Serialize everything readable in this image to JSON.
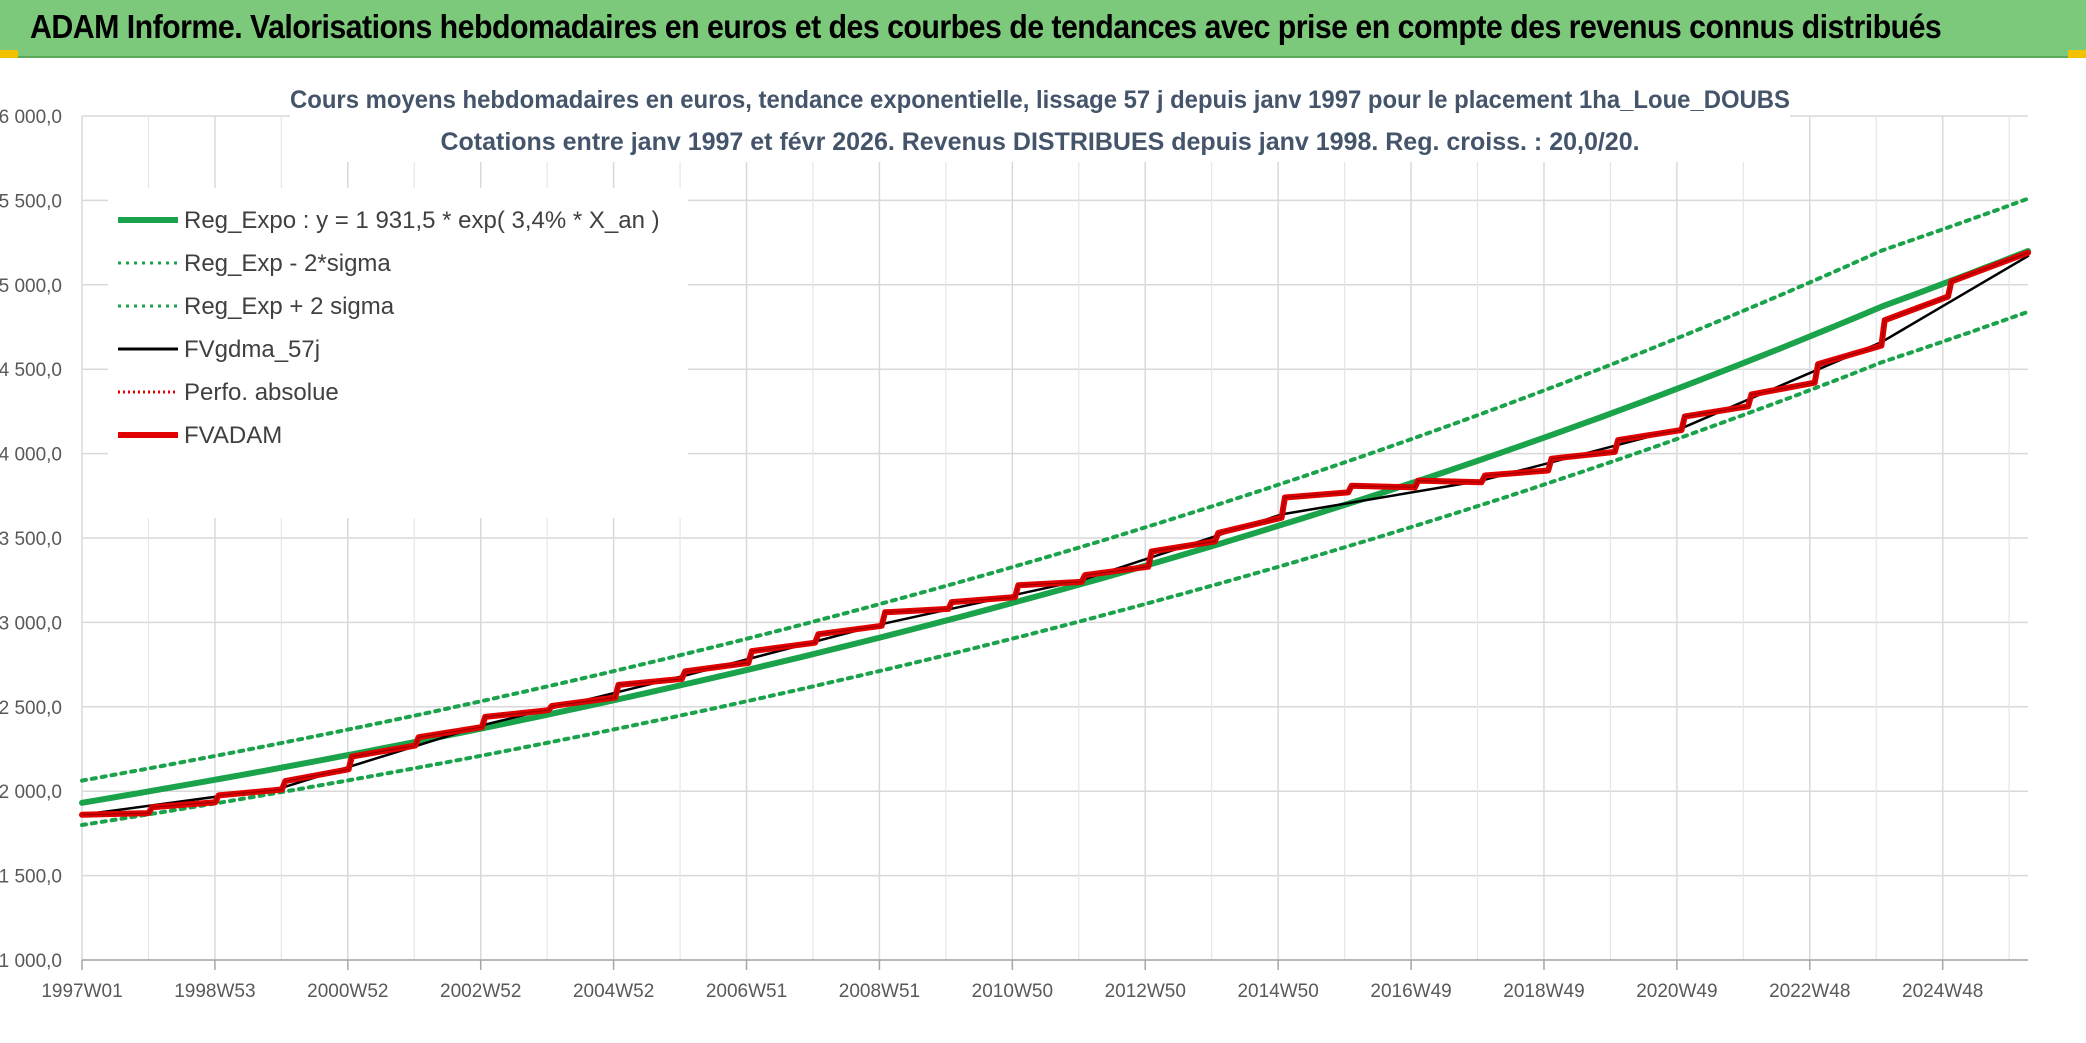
{
  "banner": {
    "title": "ADAM Informe. Valorisations hebdomadaires en euros et des courbes de tendances avec prise en compte des revenus connus distribués"
  },
  "colors": {
    "banner_bg": "#7dc97b",
    "trend": "#1aa34a",
    "band": "#1aa34a",
    "fvgdma": "#000000",
    "perfo": "#e00000",
    "fvadam": "#e00000"
  },
  "chart_data": {
    "type": "line",
    "title": "Cours moyens hebdomadaires en euros, tendance exponentielle, lissage 57 j depuis janv 1997 pour le placement 1ha_Loue_DOUBS",
    "subtitle": "Cotations entre janv 1997 et févr 2026. Revenus DISTRIBUES depuis janv 1998. Reg. croiss. : 20,0/20.",
    "xlabel": "",
    "ylabel": "",
    "ylim": [
      1000,
      6000
    ],
    "yticks": [
      "1 000,0",
      "1 500,0",
      "2 000,0",
      "2 500,0",
      "3 000,0",
      "3 500,0",
      "4 000,0",
      "4 500,0",
      "5 000,0",
      "5 500,0",
      "6 000,0"
    ],
    "x_tick_labels": [
      "1997W01",
      "1998W53",
      "2000W52",
      "2002W52",
      "2004W52",
      "2006W51",
      "2008W51",
      "2010W50",
      "2012W50",
      "2014W50",
      "2016W49",
      "2018W49",
      "2020W49",
      "2022W48",
      "2024W48"
    ],
    "x_range_years": [
      1997.0,
      2026.2
    ],
    "grid": true,
    "legend_position": "top-left",
    "legend": [
      {
        "label": "Reg_Expo : y = 1 931,5 * exp( 3,4% *  X_an )",
        "style": "solid-thick",
        "color": "#1aa34a"
      },
      {
        "label": "Reg_Exp - 2*sigma",
        "style": "dotted",
        "color": "#1aa34a"
      },
      {
        "label": "Reg_Exp + 2 sigma",
        "style": "dotted",
        "color": "#1aa34a"
      },
      {
        "label": "FVgdma_57j",
        "style": "solid",
        "color": "#000000"
      },
      {
        "label": "Perfo. absolue",
        "style": "dotted",
        "color": "#e00000"
      },
      {
        "label": "FVADAM",
        "style": "solid-thick",
        "color": "#e00000"
      }
    ],
    "series": [
      {
        "name": "Reg_Expo : y = 1 931,5 * exp( 3,4% *  X_an )",
        "x": [
          1997.0,
          2000.0,
          2003.0,
          2006.0,
          2009.0,
          2012.0,
          2015.0,
          2018.0,
          2021.0,
          2024.0,
          2026.2
        ],
        "values": [
          1931.5,
          2140,
          2372,
          2629,
          2913,
          3228,
          3578,
          3965,
          4394,
          4870,
          5200
        ]
      },
      {
        "name": "Reg_Exp - 2*sigma",
        "x": [
          1997.0,
          2000.0,
          2003.0,
          2006.0,
          2009.0,
          2012.0,
          2015.0,
          2018.0,
          2021.0,
          2024.0,
          2026.2
        ],
        "values": [
          1800,
          1995,
          2211,
          2450,
          2715,
          3009,
          3335,
          3696,
          4096,
          4540,
          4840
        ]
      },
      {
        "name": "Reg_Exp + 2 sigma",
        "x": [
          1997.0,
          2000.0,
          2003.0,
          2006.0,
          2009.0,
          2012.0,
          2015.0,
          2018.0,
          2021.0,
          2024.0,
          2026.2
        ],
        "values": [
          2063,
          2286,
          2534,
          2808,
          3112,
          3448,
          3822,
          4236,
          4694,
          5202,
          5510
        ]
      },
      {
        "name": "FVADAM",
        "x": [
          1997.0,
          1998.0,
          1998.05,
          1999.0,
          1999.05,
          2000.0,
          2000.05,
          2001.0,
          2001.05,
          2002.0,
          2002.05,
          2003.0,
          2003.05,
          2004.0,
          2004.05,
          2005.0,
          2005.05,
          2006.0,
          2006.05,
          2007.0,
          2007.05,
          2008.0,
          2008.05,
          2009.0,
          2009.05,
          2010.0,
          2010.05,
          2011.0,
          2011.05,
          2012.0,
          2012.05,
          2013.0,
          2013.05,
          2014.0,
          2014.05,
          2015.0,
          2015.05,
          2016.0,
          2016.05,
          2017.0,
          2017.05,
          2018.0,
          2018.05,
          2019.0,
          2019.05,
          2020.0,
          2020.05,
          2021.0,
          2021.05,
          2022.0,
          2022.05,
          2023.0,
          2023.05,
          2024.0,
          2024.05,
          2025.0,
          2025.05,
          2026.2
        ],
        "values": [
          1860,
          1870,
          1905,
          1935,
          1975,
          2010,
          2060,
          2130,
          2205,
          2270,
          2320,
          2380,
          2440,
          2480,
          2505,
          2555,
          2630,
          2665,
          2710,
          2760,
          2830,
          2880,
          2930,
          2980,
          3060,
          3080,
          3120,
          3150,
          3220,
          3240,
          3280,
          3330,
          3420,
          3480,
          3530,
          3620,
          3740,
          3770,
          3810,
          3800,
          3840,
          3830,
          3870,
          3900,
          3970,
          4010,
          4080,
          4140,
          4220,
          4280,
          4350,
          4420,
          4530,
          4640,
          4790,
          4930,
          5020,
          5190
        ]
      },
      {
        "name": "FVgdma_57j",
        "x": [
          1997.0,
          2000.0,
          2003.0,
          2006.0,
          2009.0,
          2012.0,
          2015.0,
          2018.0,
          2021.0,
          2024.0,
          2026.2
        ],
        "values": [
          1860,
          2020,
          2390,
          2680,
          2990,
          3250,
          3640,
          3840,
          4150,
          4660,
          5170
        ]
      }
    ]
  }
}
